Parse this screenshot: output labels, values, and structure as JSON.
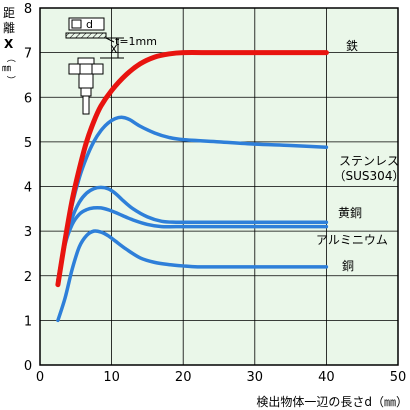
{
  "chart_data": {
    "type": "line",
    "xlim": [
      0,
      50
    ],
    "ylim": [
      0,
      8
    ],
    "xticks": [
      0,
      10,
      20,
      30,
      40,
      50
    ],
    "yticks": [
      0,
      1,
      2,
      3,
      4,
      5,
      6,
      7,
      8
    ],
    "grid": true,
    "xlabel": "検出物体一辺の長さd（㎜）",
    "ylabel": {
      "chars": [
        "距",
        "離"
      ],
      "var": "X",
      "unit": "㎜"
    },
    "inset": {
      "d_label": "d",
      "t_label": "t=1mm",
      "x_label": "X"
    },
    "series": [
      {
        "name": "鉄",
        "color": "#e8140f",
        "width": 5,
        "x": [
          2.5,
          3.5,
          4.5,
          5.5,
          6.5,
          7.5,
          8.5,
          10,
          12,
          14,
          16,
          18,
          20,
          24,
          28,
          32,
          36,
          40
        ],
        "y": [
          1.8,
          2.8,
          3.7,
          4.4,
          5.0,
          5.45,
          5.8,
          6.15,
          6.5,
          6.75,
          6.9,
          6.97,
          7.0,
          7.0,
          7.0,
          7.0,
          7.0,
          7.0
        ]
      },
      {
        "name": "ステンレス（SUS304）",
        "color": "#2e7fd9",
        "width": 3.5,
        "x": [
          2.5,
          3.5,
          4.5,
          5.5,
          6.5,
          7.5,
          8.5,
          9.5,
          10.5,
          11.5,
          12.5,
          14,
          16,
          18,
          20,
          25,
          30,
          35,
          40
        ],
        "y": [
          1.9,
          2.8,
          3.6,
          4.2,
          4.65,
          5.0,
          5.25,
          5.42,
          5.52,
          5.55,
          5.5,
          5.35,
          5.2,
          5.1,
          5.05,
          5.0,
          4.95,
          4.92,
          4.88
        ]
      },
      {
        "name": "黄銅",
        "color": "#2e7fd9",
        "width": 3.5,
        "x": [
          2.5,
          3.5,
          4.5,
          5.5,
          6.5,
          7.5,
          8.5,
          9.5,
          10.5,
          11.5,
          13,
          15,
          17,
          19,
          22,
          25,
          30,
          35,
          40
        ],
        "y": [
          1.9,
          2.75,
          3.3,
          3.65,
          3.85,
          3.95,
          3.98,
          3.95,
          3.85,
          3.7,
          3.5,
          3.32,
          3.22,
          3.2,
          3.2,
          3.2,
          3.2,
          3.2,
          3.2
        ]
      },
      {
        "name": "アルミニウム",
        "color": "#2e7fd9",
        "width": 3.5,
        "x": [
          2.5,
          3.5,
          4.5,
          5.5,
          6.5,
          7.5,
          8.5,
          9.5,
          10.5,
          11.5,
          13,
          15,
          17,
          19,
          22,
          25,
          30,
          35,
          40
        ],
        "y": [
          1.9,
          2.7,
          3.15,
          3.38,
          3.48,
          3.52,
          3.52,
          3.48,
          3.42,
          3.35,
          3.25,
          3.15,
          3.1,
          3.1,
          3.1,
          3.1,
          3.1,
          3.1,
          3.1
        ]
      },
      {
        "name": "銅",
        "color": "#2e7fd9",
        "width": 3.5,
        "x": [
          2.5,
          3.5,
          4.5,
          5.5,
          6.5,
          7.5,
          8.5,
          9.5,
          10.5,
          12,
          14,
          16,
          18,
          20,
          22,
          25,
          30,
          35,
          40
        ],
        "y": [
          1.0,
          1.5,
          2.15,
          2.65,
          2.9,
          3.0,
          2.98,
          2.9,
          2.78,
          2.6,
          2.4,
          2.3,
          2.25,
          2.22,
          2.2,
          2.2,
          2.2,
          2.2,
          2.2
        ]
      }
    ],
    "series_labels": [
      {
        "lines": [
          "鉄"
        ]
      },
      {
        "lines": [
          "ステンレス",
          "（SUS304）"
        ]
      },
      {
        "lines": [
          "黄銅"
        ]
      },
      {
        "lines": [
          "アルミニウム"
        ]
      },
      {
        "lines": [
          "銅"
        ]
      }
    ]
  }
}
